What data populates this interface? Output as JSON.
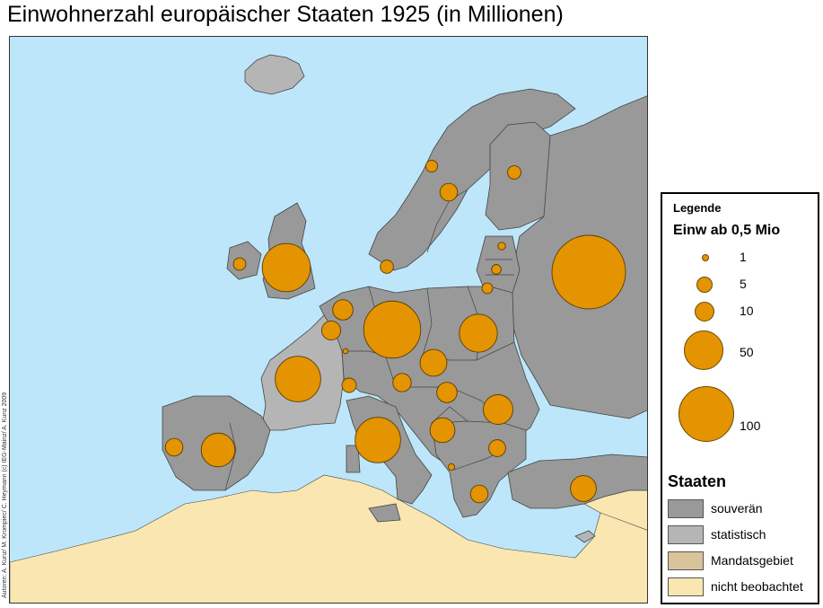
{
  "title": "Einwohnerzahl europäischer Staaten 1925 (in Millionen)",
  "credit": "Autoren: A. Kunz/ M. Krompiec/ C. Heymann (c) IEG-Mainz/ A. Kunz 2009",
  "colors": {
    "sea": "#bde6fa",
    "souveraen": "#999999",
    "statistisch": "#b5b5b5",
    "mandatsgebiet": "#d9c39a",
    "nicht_beobachtet": "#fae6b0",
    "bubble": "#e39400",
    "border": "#444444"
  },
  "legend": {
    "title": "Legende",
    "size_title": "Einw ab 0,5 Mio",
    "sizes": [
      {
        "value": 1,
        "label": "1"
      },
      {
        "value": 5,
        "label": "5"
      },
      {
        "value": 10,
        "label": "10"
      },
      {
        "value": 50,
        "label": "50"
      },
      {
        "value": 100,
        "label": "100"
      }
    ],
    "states_title": "Staaten",
    "states": [
      {
        "label": "souverän",
        "color": "#999999"
      },
      {
        "label": "statistisch",
        "color": "#b5b5b5"
      },
      {
        "label": "Mandatsgebiet",
        "color": "#d9c39a"
      },
      {
        "label": "nicht beobachtet",
        "color": "#fae6b0"
      }
    ]
  },
  "bubbles": [
    {
      "id": "sowjetunion",
      "value": 105
    },
    {
      "id": "deutschland",
      "value": 63
    },
    {
      "id": "grossbritannien",
      "value": 45
    },
    {
      "id": "frankreich",
      "value": 40
    },
    {
      "id": "italien",
      "value": 40
    },
    {
      "id": "polen",
      "value": 28
    },
    {
      "id": "spanien",
      "value": 22
    },
    {
      "id": "rumaenien",
      "value": 17
    },
    {
      "id": "tuerkei",
      "value": 13
    },
    {
      "id": "jugoslawien",
      "value": 12
    },
    {
      "id": "tschechoslowakei",
      "value": 14
    },
    {
      "id": "ungarn",
      "value": 8
    },
    {
      "id": "belgien",
      "value": 8
    },
    {
      "id": "schweden",
      "value": 6
    },
    {
      "id": "oesterreich",
      "value": 6.5
    },
    {
      "id": "portugal",
      "value": 6
    },
    {
      "id": "bulgarien",
      "value": 5.5
    },
    {
      "id": "griechenland",
      "value": 6
    },
    {
      "id": "niederlande",
      "value": 7
    },
    {
      "id": "schweiz",
      "value": 4
    },
    {
      "id": "daenemark",
      "value": 3.4
    },
    {
      "id": "finnland",
      "value": 3.5
    },
    {
      "id": "norwegen",
      "value": 2.7
    },
    {
      "id": "irland",
      "value": 3
    },
    {
      "id": "litauen",
      "value": 2.2
    },
    {
      "id": "lettland",
      "value": 1.8
    },
    {
      "id": "estland",
      "value": 1.1
    },
    {
      "id": "albanien",
      "value": 0.8
    },
    {
      "id": "luxemburg",
      "value": 0.5
    }
  ]
}
